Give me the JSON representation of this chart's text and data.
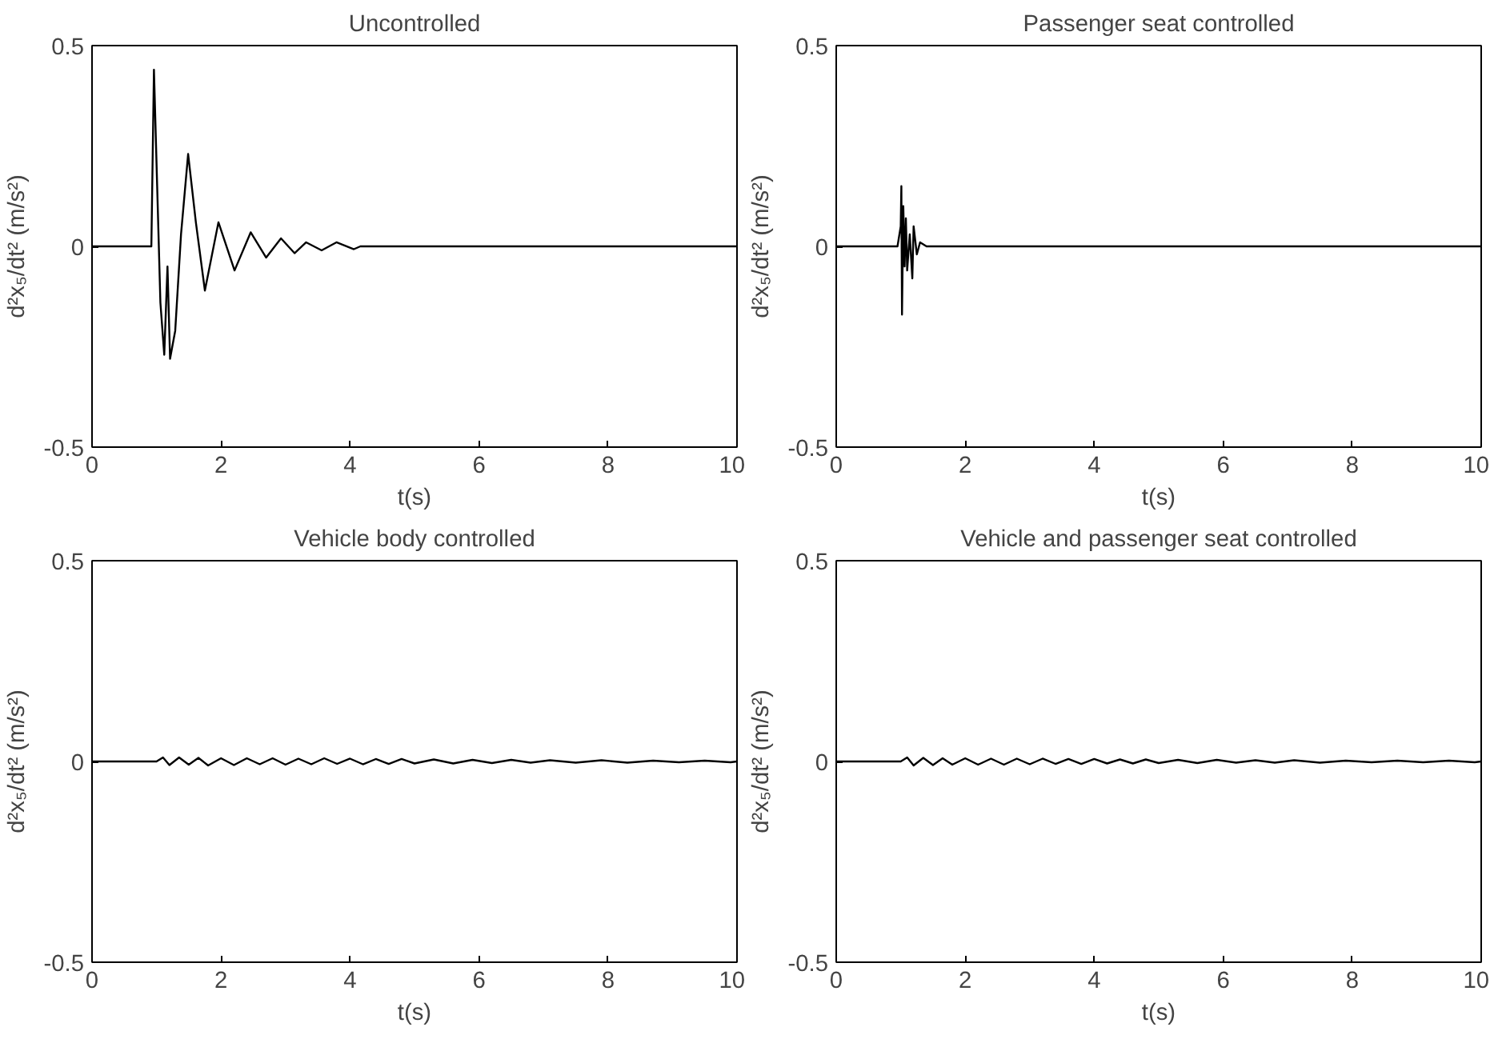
{
  "chart_data": [
    {
      "type": "line",
      "title": "Uncontrolled",
      "xlabel": "t(s)",
      "ylabel": "d²x₅/dt² (m/s²)",
      "xlim": [
        0,
        10
      ],
      "ylim": [
        -0.5,
        0.5
      ],
      "xticks": [
        0,
        2,
        4,
        6,
        8,
        10
      ],
      "yticks": [
        -0.5,
        0,
        0.5
      ],
      "grid": false,
      "series": [
        {
          "color": "#000000",
          "x": [
            0,
            0.92,
            0.96,
            1.01,
            1.06,
            1.12,
            1.17,
            1.21,
            1.29,
            1.38,
            1.49,
            1.61,
            1.75,
            1.96,
            2.21,
            2.46,
            2.7,
            2.93,
            3.14,
            3.32,
            3.56,
            3.79,
            4.06,
            4.16,
            10
          ],
          "values": [
            0,
            0,
            0.44,
            0.15,
            -0.14,
            -0.27,
            -0.05,
            -0.28,
            -0.21,
            0.03,
            0.23,
            0.06,
            -0.11,
            0.06,
            -0.06,
            0.035,
            -0.028,
            0.02,
            -0.017,
            0.01,
            -0.01,
            0.01,
            -0.007,
            0,
            0
          ]
        }
      ]
    },
    {
      "type": "line",
      "title": "Passenger seat controlled",
      "xlabel": "t(s)",
      "ylabel": "d²x₅/dt² (m/s²)",
      "xlim": [
        0,
        10
      ],
      "ylim": [
        -0.5,
        0.5
      ],
      "xticks": [
        0,
        2,
        4,
        6,
        8,
        10
      ],
      "yticks": [
        -0.5,
        0,
        0.5
      ],
      "grid": false,
      "series": [
        {
          "color": "#000000",
          "x": [
            0,
            0.95,
            1.0,
            1.01,
            1.02,
            1.04,
            1.06,
            1.08,
            1.1,
            1.14,
            1.18,
            1.2,
            1.25,
            1.3,
            1.4,
            10
          ],
          "values": [
            0,
            0,
            0.05,
            0.15,
            -0.17,
            0.1,
            -0.05,
            0.07,
            -0.06,
            0.03,
            -0.08,
            0.05,
            -0.02,
            0.01,
            0,
            0
          ]
        }
      ]
    },
    {
      "type": "line",
      "title": "Vehicle body controlled",
      "xlabel": "t(s)",
      "ylabel": "d²x₅/dt² (m/s²)",
      "xlim": [
        0,
        10
      ],
      "ylim": [
        -0.5,
        0.5
      ],
      "xticks": [
        0,
        2,
        4,
        6,
        8,
        10
      ],
      "yticks": [
        -0.5,
        0,
        0.5
      ],
      "grid": false,
      "series": [
        {
          "color": "#000000",
          "x": [
            0,
            1.0,
            1.1,
            1.2,
            1.35,
            1.5,
            1.65,
            1.8,
            2.0,
            2.2,
            2.4,
            2.6,
            2.8,
            3.0,
            3.2,
            3.4,
            3.6,
            3.8,
            4.0,
            4.2,
            4.4,
            4.6,
            4.8,
            5.0,
            5.3,
            5.6,
            5.9,
            6.2,
            6.5,
            6.8,
            7.1,
            7.5,
            7.9,
            8.3,
            8.7,
            9.1,
            9.5,
            9.9,
            10
          ],
          "values": [
            0,
            0,
            0.01,
            -0.009,
            0.01,
            -0.008,
            0.009,
            -0.01,
            0.008,
            -0.009,
            0.008,
            -0.007,
            0.008,
            -0.008,
            0.007,
            -0.007,
            0.008,
            -0.006,
            0.007,
            -0.007,
            0.006,
            -0.006,
            0.006,
            -0.005,
            0.005,
            -0.005,
            0.004,
            -0.004,
            0.004,
            -0.003,
            0.003,
            -0.003,
            0.003,
            -0.003,
            0.002,
            -0.002,
            0.002,
            -0.002,
            0
          ]
        }
      ]
    },
    {
      "type": "line",
      "title": "Vehicle and passenger seat controlled",
      "xlabel": "t(s)",
      "ylabel": "d²x₅/dt² (m/s²)",
      "xlim": [
        0,
        10
      ],
      "ylim": [
        -0.5,
        0.5
      ],
      "xticks": [
        0,
        2,
        4,
        6,
        8,
        10
      ],
      "yticks": [
        -0.5,
        0,
        0.5
      ],
      "grid": false,
      "series": [
        {
          "color": "#000000",
          "x": [
            0,
            1.0,
            1.1,
            1.2,
            1.35,
            1.5,
            1.65,
            1.8,
            2.0,
            2.2,
            2.4,
            2.6,
            2.8,
            3.0,
            3.2,
            3.4,
            3.6,
            3.8,
            4.0,
            4.2,
            4.4,
            4.6,
            4.8,
            5.0,
            5.3,
            5.6,
            5.9,
            6.2,
            6.5,
            6.8,
            7.1,
            7.5,
            7.9,
            8.3,
            8.7,
            9.1,
            9.5,
            9.9,
            10
          ],
          "values": [
            0,
            0,
            0.01,
            -0.01,
            0.009,
            -0.009,
            0.008,
            -0.008,
            0.008,
            -0.008,
            0.007,
            -0.008,
            0.007,
            -0.007,
            0.007,
            -0.006,
            0.006,
            -0.006,
            0.006,
            -0.005,
            0.005,
            -0.005,
            0.005,
            -0.004,
            0.004,
            -0.004,
            0.004,
            -0.003,
            0.003,
            -0.003,
            0.003,
            -0.003,
            0.002,
            -0.002,
            0.002,
            -0.002,
            0.002,
            -0.002,
            0
          ]
        }
      ]
    }
  ]
}
